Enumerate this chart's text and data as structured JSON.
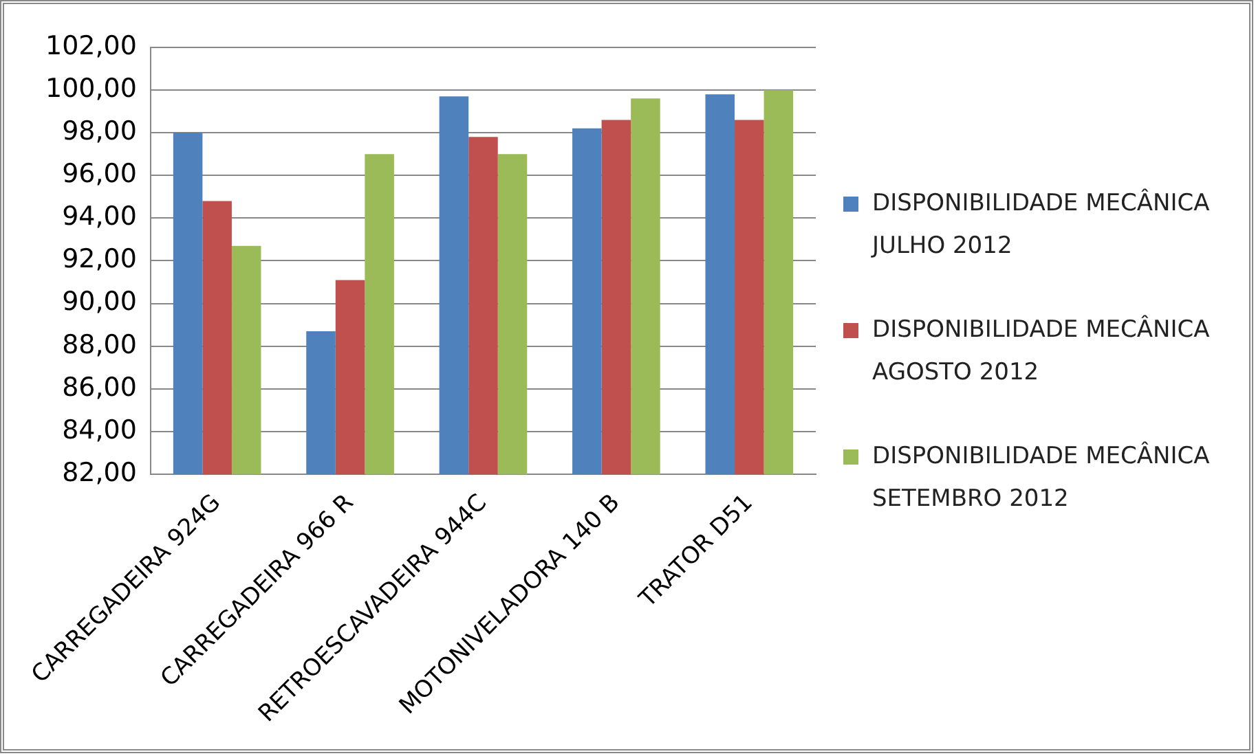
{
  "chart_data": {
    "type": "bar",
    "categories": [
      "CARREGADEIRA 924G",
      "CARREGADEIRA 966 R",
      "RETROESCAVADEIRA 944C",
      "MOTONIVELADORA 140 B",
      "TRATOR D51"
    ],
    "series": [
      {
        "name": "DISPONIBILIDADE MECÂNICA JULHO 2012",
        "color": "#4f81bd",
        "values": [
          98.0,
          88.7,
          99.7,
          98.2,
          99.8
        ]
      },
      {
        "name": "DISPONIBILIDADE MECÂNICA AGOSTO 2012",
        "color": "#c0504d",
        "values": [
          94.8,
          91.1,
          97.8,
          98.6,
          98.6
        ]
      },
      {
        "name": "DISPONIBILIDADE MECÂNICA SETEMBRO 2012",
        "color": "#9bbb59",
        "values": [
          92.7,
          97.0,
          97.0,
          99.6,
          100.0
        ]
      }
    ],
    "ylim": [
      82,
      102
    ],
    "yticks": [
      {
        "value": 82,
        "label": "82,00"
      },
      {
        "value": 84,
        "label": "84,00"
      },
      {
        "value": 86,
        "label": "86,00"
      },
      {
        "value": 88,
        "label": "88,00"
      },
      {
        "value": 90,
        "label": "90,00"
      },
      {
        "value": 92,
        "label": "92,00"
      },
      {
        "value": 94,
        "label": "94,00"
      },
      {
        "value": 96,
        "label": "96,00"
      },
      {
        "value": 98,
        "label": "98,00"
      },
      {
        "value": 100,
        "label": "100,00"
      },
      {
        "value": 102,
        "label": "102,00"
      }
    ],
    "grid": "y",
    "legend": "right"
  }
}
